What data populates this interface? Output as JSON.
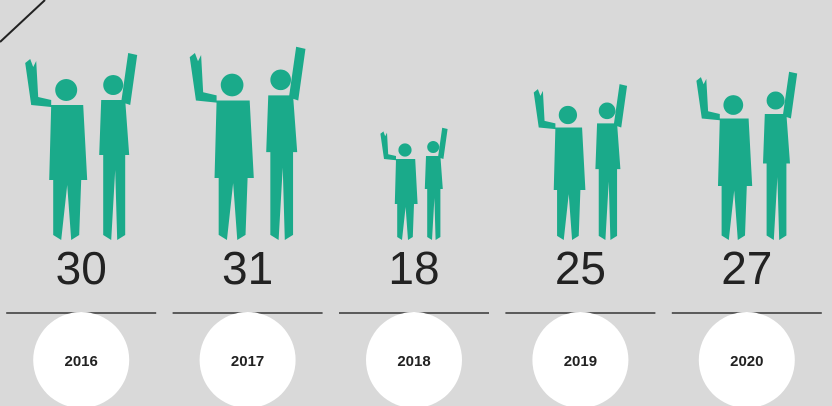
{
  "chart_data": {
    "type": "bar",
    "categories": [
      "2016",
      "2017",
      "2018",
      "2019",
      "2020"
    ],
    "values": [
      30,
      31,
      18,
      25,
      27
    ],
    "color": "#1aaa8a"
  }
}
